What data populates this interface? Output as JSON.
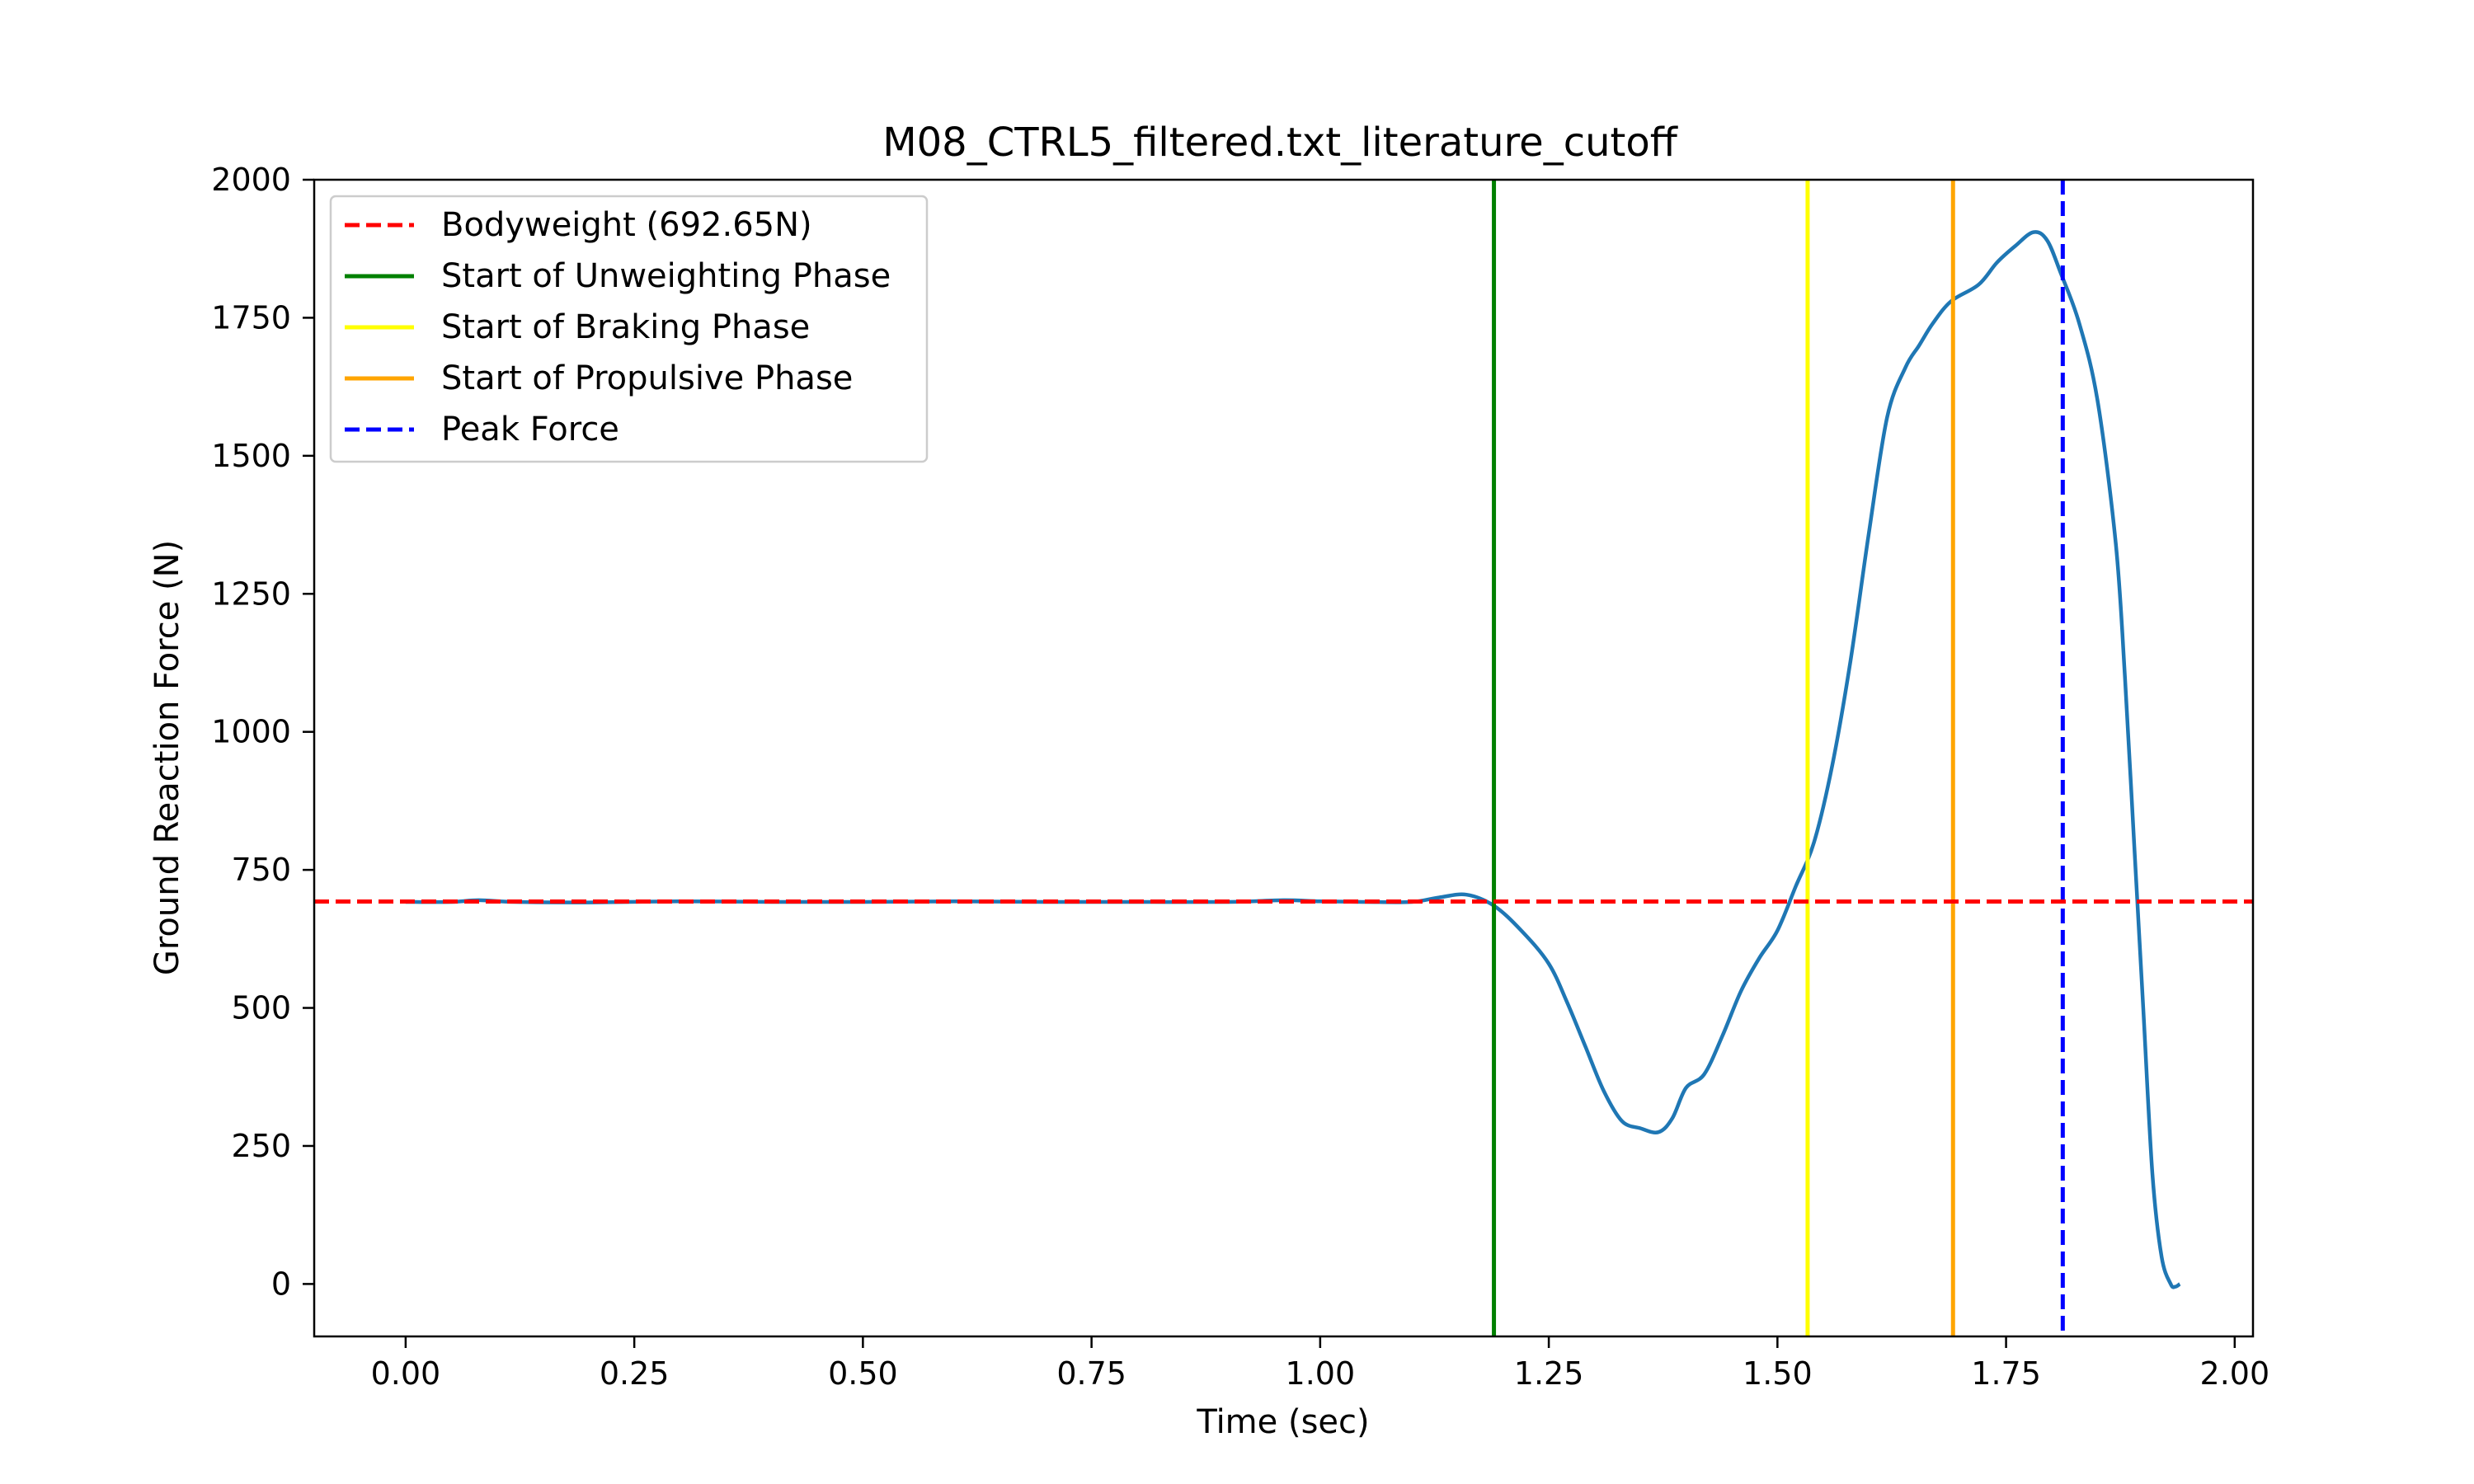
{
  "chart_data": {
    "type": "line",
    "title": "M08_CTRL5_filtered.txt_literature_cutoff",
    "xlabel": "Time (sec)",
    "ylabel": "Ground Reaction Force (N)",
    "xlim": [
      -0.1,
      2.02
    ],
    "ylim": [
      -95,
      2000
    ],
    "xticks": [
      0.0,
      0.25,
      0.5,
      0.75,
      1.0,
      1.25,
      1.5,
      1.75,
      2.0
    ],
    "xtick_labels": [
      "0.00",
      "0.25",
      "0.50",
      "0.75",
      "1.00",
      "1.25",
      "1.50",
      "1.75",
      "2.00"
    ],
    "yticks": [
      0,
      250,
      500,
      750,
      1000,
      1250,
      1500,
      1750,
      2000
    ],
    "ytick_labels": [
      "0",
      "250",
      "500",
      "750",
      "1000",
      "1250",
      "1500",
      "1750",
      "2000"
    ],
    "grid": false,
    "legend_position": "top-left",
    "series": [
      {
        "color": "#1f77b4",
        "x": [
          0.0,
          0.05,
          0.08,
          0.12,
          0.2,
          0.3,
          0.4,
          0.5,
          0.6,
          0.7,
          0.8,
          0.9,
          0.96,
          1.0,
          1.05,
          1.1,
          1.13,
          1.16,
          1.19,
          1.22,
          1.25,
          1.27,
          1.29,
          1.31,
          1.33,
          1.35,
          1.37,
          1.385,
          1.4,
          1.42,
          1.44,
          1.46,
          1.48,
          1.5,
          1.52,
          1.54,
          1.56,
          1.58,
          1.6,
          1.62,
          1.64,
          1.655,
          1.67,
          1.69,
          1.72,
          1.74,
          1.76,
          1.78,
          1.795,
          1.81,
          1.83,
          1.85,
          1.87,
          1.88,
          1.89,
          1.9,
          1.91,
          1.92,
          1.93,
          1.935,
          1.94
        ],
        "y": [
          692,
          692,
          695,
          692,
          691,
          693,
          692,
          692,
          693,
          692,
          692,
          692,
          695,
          693,
          692,
          692,
          700,
          705,
          685,
          640,
          580,
          510,
          430,
          350,
          295,
          282,
          275,
          300,
          355,
          380,
          450,
          530,
          590,
          640,
          720,
          800,
          940,
          1130,
          1360,
          1570,
          1660,
          1700,
          1740,
          1780,
          1810,
          1850,
          1880,
          1905,
          1890,
          1830,
          1740,
          1600,
          1340,
          1100,
          800,
          500,
          200,
          50,
          0,
          -5,
          0
        ]
      }
    ],
    "legend": [
      {
        "label": "Bodyweight (692.65N)",
        "color": "#ff0000",
        "style": "dashed"
      },
      {
        "label": "Start of Unweighting Phase",
        "color": "#008000",
        "style": "solid"
      },
      {
        "label": "Start of Braking Phase",
        "color": "#ffff00",
        "style": "solid"
      },
      {
        "label": "Start of Propulsive Phase",
        "color": "#ffa500",
        "style": "solid"
      },
      {
        "label": "Peak Force",
        "color": "#0000ff",
        "style": "dashed"
      }
    ],
    "reference_lines": {
      "bodyweight_y": 692.65,
      "unweighting_x": 1.19,
      "braking_x": 1.533,
      "propulsive_x": 1.692,
      "peak_force_x": 1.812
    }
  }
}
